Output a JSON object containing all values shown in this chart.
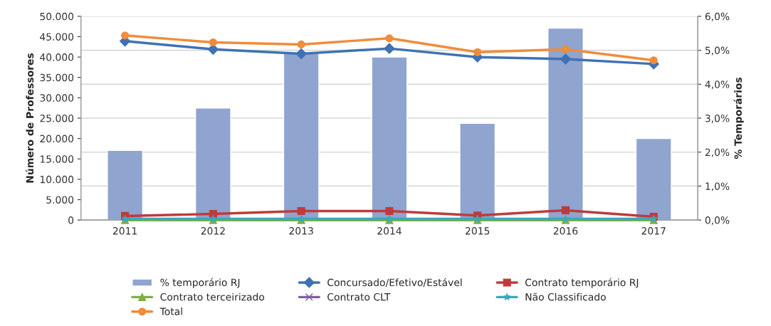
{
  "chart_data": {
    "type": "bar",
    "ylabel": "Número de Professores",
    "y2label": "% Temporários",
    "categories": [
      "2011",
      "2012",
      "2013",
      "2014",
      "2015",
      "2016",
      "2017"
    ],
    "series": [
      {
        "name": "% temporário RJ",
        "axis": "y2",
        "color": "#8fa4cf",
        "values": [
          2.05,
          3.3,
          4.9,
          4.8,
          2.85,
          5.65,
          2.4
        ]
      },
      {
        "name": "Concursado/Efetivo/Estável",
        "type": "line",
        "marker": "diamond",
        "color": "#3f72b4",
        "values": [
          43900,
          41900,
          40800,
          42100,
          40000,
          39500,
          38300
        ]
      },
      {
        "name": "Contrato temporário RJ",
        "type": "line",
        "marker": "square",
        "color": "#bf3b3b",
        "values": [
          1000,
          1500,
          2200,
          2200,
          1100,
          2400,
          800
        ]
      },
      {
        "name": "Contrato terceirizado",
        "type": "line",
        "marker": "triangle",
        "color": "#7faf45",
        "values": [
          0,
          0,
          0,
          0,
          0,
          0,
          0
        ]
      },
      {
        "name": "Contrato CLT",
        "type": "line",
        "marker": "cross",
        "color": "#7d5ea3",
        "values": [
          null,
          null,
          null,
          null,
          null,
          null,
          null
        ]
      },
      {
        "name": "Não Classificado",
        "type": "line",
        "marker": "star",
        "color": "#3aa8c0",
        "values": [
          300,
          300,
          300,
          300,
          300,
          300,
          300
        ]
      },
      {
        "name": "Total",
        "type": "line",
        "marker": "circle",
        "color": "#f08c3a",
        "values": [
          45300,
          43600,
          43100,
          44600,
          41200,
          41900,
          39200
        ]
      }
    ],
    "ylim": [
      0,
      50000
    ],
    "yticks": [
      {
        "value": 0,
        "label": "0"
      },
      {
        "value": 5000,
        "label": "5.000"
      },
      {
        "value": 10000,
        "label": "10.000"
      },
      {
        "value": 15000,
        "label": "15.000"
      },
      {
        "value": 20000,
        "label": "20.000"
      },
      {
        "value": 25000,
        "label": "25.000"
      },
      {
        "value": 30000,
        "label": "30.000"
      },
      {
        "value": 35000,
        "label": "35.000"
      },
      {
        "value": 40000,
        "label": "40.000"
      },
      {
        "value": 45000,
        "label": "45.000"
      },
      {
        "value": 50000,
        "label": "50.000"
      }
    ],
    "y2lim": [
      0,
      6
    ],
    "y2ticks": [
      {
        "value": 0,
        "label": "0,0%"
      },
      {
        "value": 1,
        "label": "1,0%"
      },
      {
        "value": 2,
        "label": "2,0%"
      },
      {
        "value": 3,
        "label": "3,0%"
      },
      {
        "value": 4,
        "label": "4,0%"
      },
      {
        "value": 5,
        "label": "5,0%"
      },
      {
        "value": 6,
        "label": "6,0%"
      }
    ],
    "grid": "y",
    "legend": "bottom"
  }
}
